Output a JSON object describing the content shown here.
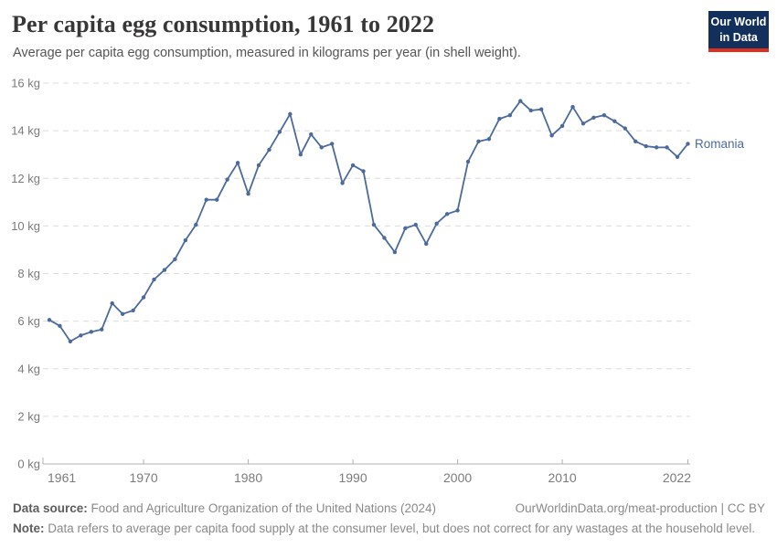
{
  "header": {
    "title": "Per capita egg consumption, 1961 to 2022",
    "subtitle": "Average per capita egg consumption, measured in kilograms per year (in shell weight)."
  },
  "logo": {
    "line1": "Our World",
    "line2": "in Data",
    "bg_color": "#12305b",
    "bar_color": "#dc2f1e"
  },
  "chart_data": {
    "type": "line",
    "title": "Per capita egg consumption, 1961 to 2022",
    "xlabel": "",
    "ylabel": "",
    "ylim": [
      0,
      16
    ],
    "ytick_suffix": " kg",
    "yticks": [
      0,
      2,
      4,
      6,
      8,
      10,
      12,
      14,
      16
    ],
    "xticks": [
      1961,
      1970,
      1980,
      1990,
      2000,
      2010,
      2022
    ],
    "grid": "horizontal-dashed",
    "legend_position": "end-of-line",
    "x": [
      1961,
      1962,
      1963,
      1964,
      1965,
      1966,
      1967,
      1968,
      1969,
      1970,
      1971,
      1972,
      1973,
      1974,
      1975,
      1976,
      1977,
      1978,
      1979,
      1980,
      1981,
      1982,
      1983,
      1984,
      1985,
      1986,
      1987,
      1988,
      1989,
      1990,
      1991,
      1992,
      1993,
      1994,
      1995,
      1996,
      1997,
      1998,
      1999,
      2000,
      2001,
      2002,
      2003,
      2004,
      2005,
      2006,
      2007,
      2008,
      2009,
      2010,
      2011,
      2012,
      2013,
      2014,
      2015,
      2016,
      2017,
      2018,
      2019,
      2020,
      2021,
      2022
    ],
    "series": [
      {
        "name": "Romania",
        "color": "#4C6A9C",
        "values": [
          6.05,
          5.8,
          5.15,
          5.4,
          5.55,
          5.65,
          6.75,
          6.3,
          6.45,
          7.0,
          7.75,
          8.15,
          8.6,
          9.4,
          10.05,
          11.1,
          11.1,
          11.95,
          12.65,
          11.35,
          12.55,
          13.2,
          13.95,
          14.7,
          13.0,
          13.85,
          13.3,
          13.45,
          11.8,
          12.55,
          12.3,
          10.05,
          9.5,
          8.9,
          9.9,
          10.05,
          9.25,
          10.1,
          10.5,
          10.65,
          12.7,
          13.55,
          13.65,
          14.5,
          14.65,
          15.25,
          14.85,
          14.9,
          13.8,
          14.2,
          15.0,
          14.3,
          14.55,
          14.65,
          14.4,
          14.1,
          13.55,
          13.35,
          13.3,
          13.3,
          12.9,
          13.45
        ]
      }
    ],
    "colors": {
      "grid": "#dcdcdc",
      "axis": "#b0b0b0",
      "tick_label": "#7b7b7b"
    }
  },
  "footer": {
    "source_label": "Data source:",
    "source_text": "Food and Agriculture Organization of the United Nations (2024)",
    "link": "OurWorldinData.org/meat-production | CC BY",
    "note_label": "Note:",
    "note_text": "Data refers to average per capita food supply at the consumer level, but does not correct for any wastages at the household level."
  }
}
